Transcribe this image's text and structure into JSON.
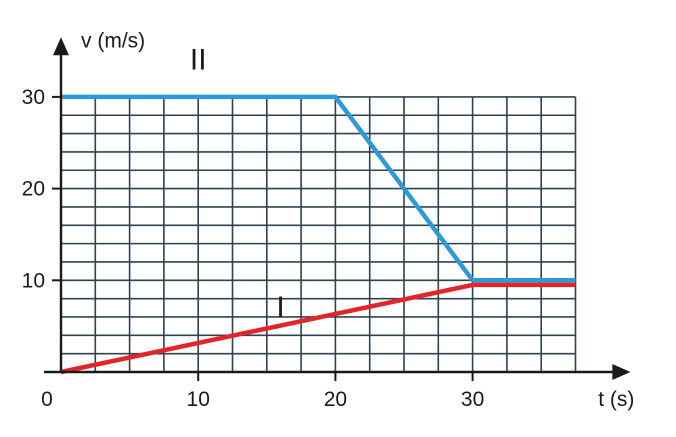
{
  "chart_data": {
    "type": "line",
    "xlabel": "t (s)",
    "ylabel": "v (m/s)",
    "xlim": [
      0,
      41.5
    ],
    "ylim": [
      0,
      36.5
    ],
    "grid": true,
    "grid_extent": {
      "x": [
        0,
        37.5
      ],
      "y": [
        0,
        30
      ]
    },
    "grid_step": {
      "x": 2.5,
      "y": 2
    },
    "origin_label": "0",
    "x_ticks": [
      10,
      20,
      30
    ],
    "x_tick_labels": [
      "10",
      "20",
      "30"
    ],
    "y_ticks": [
      10,
      20,
      30
    ],
    "y_tick_labels": [
      "10",
      "20",
      "30"
    ],
    "series": [
      {
        "name": "II",
        "color": "#2b9ad6",
        "points": [
          [
            0,
            30
          ],
          [
            20,
            30
          ],
          [
            30,
            10
          ],
          [
            37.5,
            10
          ]
        ],
        "label_at": [
          10,
          33
        ]
      },
      {
        "name": "I",
        "color": "#e1262b",
        "points": [
          [
            0,
            0
          ],
          [
            30,
            9.5
          ],
          [
            37.5,
            9.5
          ]
        ],
        "label_at": [
          16,
          6
        ]
      }
    ],
    "colors": {
      "axis": "#1a1a1a",
      "grid": "#2e4250"
    }
  }
}
